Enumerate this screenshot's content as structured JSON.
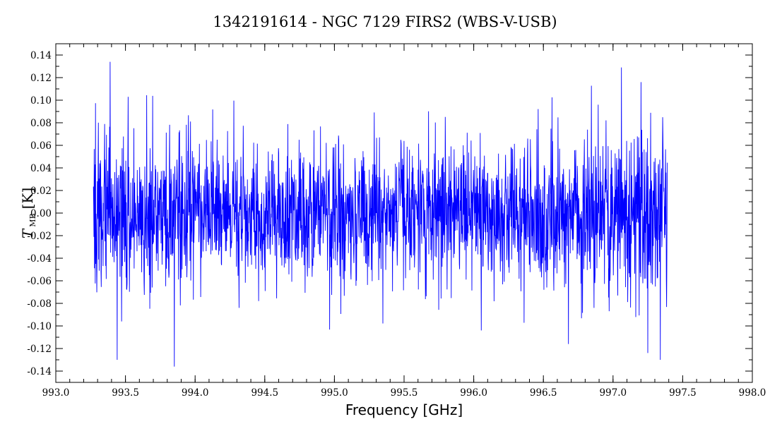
{
  "chart_data": {
    "type": "line",
    "title": "1342191614 - NGC 7129 FIRS2 (WBS-V-USB)",
    "xlabel": "Frequency [GHz]",
    "ylabel_main": "T",
    "ylabel_sub": "MB",
    "ylabel_unit": "[K]",
    "xlim": [
      993.0,
      998.0
    ],
    "ylim": [
      -0.15,
      0.15
    ],
    "x_ticks": [
      "993.0",
      "993.5",
      "994.0",
      "994.5",
      "995.0",
      "995.5",
      "996.0",
      "996.5",
      "997.0",
      "997.5",
      "998.0"
    ],
    "y_ticks": [
      "0.14",
      "0.12",
      "0.10",
      "0.08",
      "0.06",
      "0.04",
      "0.02",
      "0.00",
      "-0.02",
      "-0.04",
      "-0.06",
      "-0.08",
      "-0.10",
      "-0.12",
      "-0.14"
    ],
    "series": [
      {
        "color": "#0000ff",
        "x_range": [
          993.27,
          997.39
        ],
        "points": 2200,
        "noise_rms": 0.03,
        "peaks": [
          {
            "x": 993.39,
            "y": 0.134
          },
          {
            "x": 993.52,
            "y": 0.103
          },
          {
            "x": 993.44,
            "y": -0.13
          },
          {
            "x": 993.85,
            "y": -0.136
          },
          {
            "x": 997.06,
            "y": 0.129
          },
          {
            "x": 997.2,
            "y": 0.116
          },
          {
            "x": 997.34,
            "y": -0.13
          },
          {
            "x": 997.25,
            "y": -0.124
          },
          {
            "x": 996.68,
            "y": -0.116
          }
        ]
      }
    ],
    "grid": false,
    "legend": "none"
  }
}
